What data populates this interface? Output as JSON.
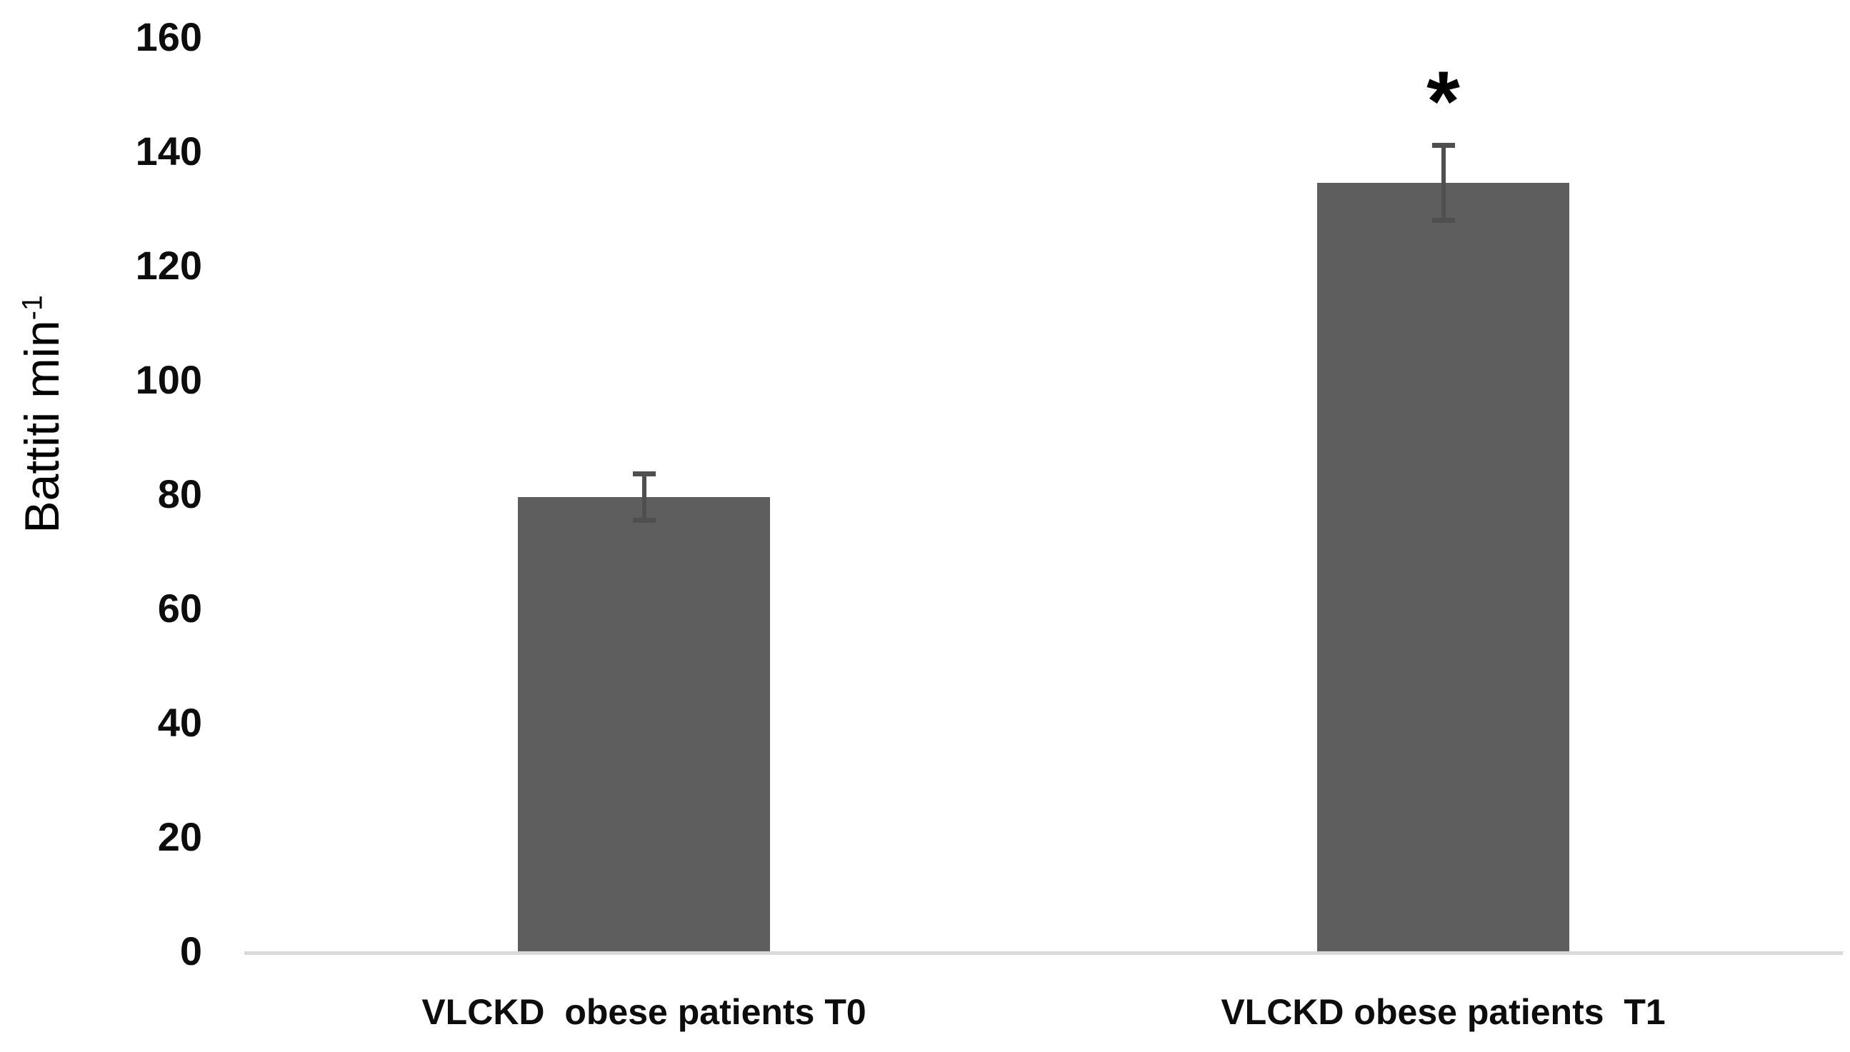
{
  "chart_data": {
    "type": "bar",
    "title": "",
    "ylabel": "Battiti min-1",
    "ylabel_base": "Battiti min",
    "ylabel_superscript": "-1",
    "xlabel": "",
    "categories": [
      "VLCKD  obese patients T0",
      "VLCKD obese patients  T1"
    ],
    "values": [
      79.5,
      134.5
    ],
    "errors": [
      4.5,
      7
    ],
    "annotations": [
      {
        "category_index": 1,
        "text": "*"
      }
    ],
    "ylim": [
      0,
      160
    ],
    "ytick_step": 20,
    "yticks": [
      0,
      20,
      40,
      60,
      80,
      100,
      120,
      140,
      160
    ],
    "grid": false,
    "legend": null,
    "colors": {
      "bar": "#5e5e5e",
      "error_bar": "#4f4f4f",
      "axis_line": "#d9d9d9",
      "text": "#0d0d0d"
    }
  }
}
